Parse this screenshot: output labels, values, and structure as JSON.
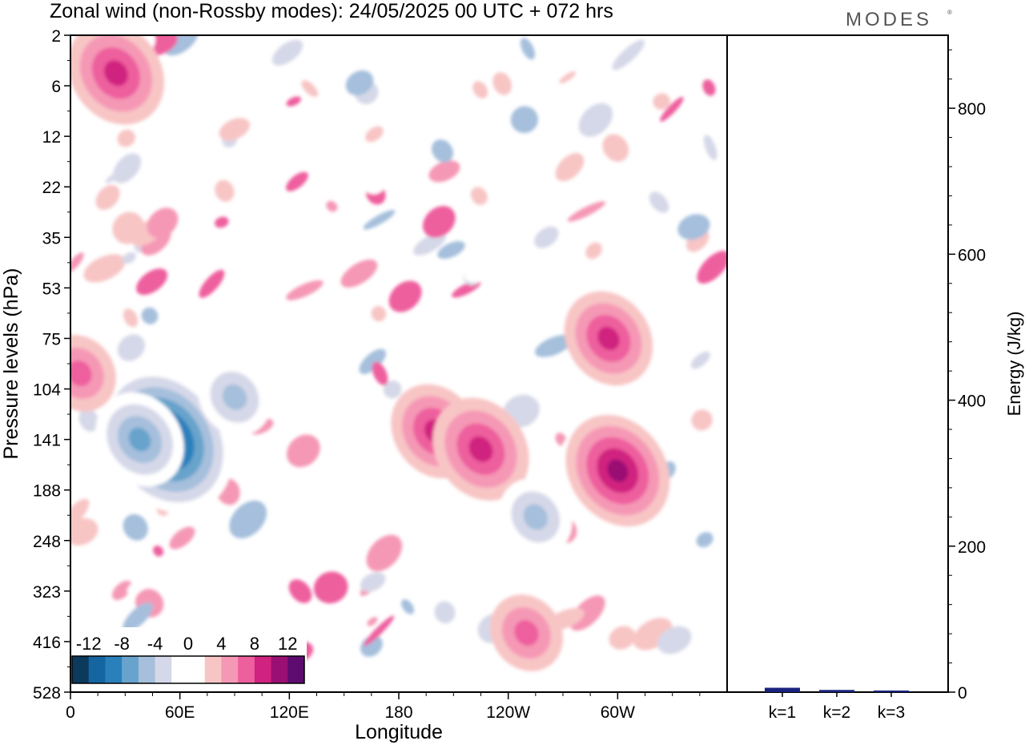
{
  "title": "Zonal wind (non-Rossby modes):  24/05/2025  00 UTC  + 072 hrs",
  "logo": "MODES",
  "ylabel": "Pressure levels (hPa)",
  "xlabel": "Longitude",
  "energy_label": "Energy (J/kg)",
  "chart_data": [
    {
      "type": "heatmap",
      "title": "Zonal wind (non-Rossby modes):  24/05/2025  00 UTC  + 072 hrs",
      "xlabel": "Longitude",
      "ylabel": "Pressure levels (hPa)",
      "x_ticks": [
        "0",
        "60E",
        "120E",
        "180",
        "120W",
        "60W"
      ],
      "y_ticks": [
        "2",
        "6",
        "12",
        "22",
        "35",
        "53",
        "75",
        "104",
        "141",
        "188",
        "248",
        "323",
        "416",
        "528"
      ],
      "colorbar": {
        "ticks": [
          "-12",
          "-8",
          "-4",
          "0",
          "4",
          "8",
          "12"
        ],
        "colors": [
          "#0b3a5c",
          "#1565a0",
          "#2a80bb",
          "#67a3cc",
          "#a5bfdc",
          "#d5d8e8",
          "#ffffff",
          "#ffffff",
          "#f8c5c5",
          "#f598b5",
          "#ee5f9e",
          "#d0227f",
          "#9a0f73",
          "#5e0b6f"
        ]
      },
      "features": [
        {
          "lon": 52,
          "level": 141,
          "value": -14
        },
        {
          "lon": 38,
          "level": 141,
          "value": -8
        },
        {
          "lon": 90,
          "level": 110,
          "value": -6
        },
        {
          "lon": 200,
          "level": 135,
          "value": 8
        },
        {
          "lon": 225,
          "level": 150,
          "value": 9
        },
        {
          "lon": 300,
          "level": 170,
          "value": 10
        },
        {
          "lon": 295,
          "level": 75,
          "value": 8
        },
        {
          "lon": 25,
          "level": 5,
          "value": 9
        },
        {
          "lon": 255,
          "level": 220,
          "value": -6
        },
        {
          "lon": 250,
          "level": 400,
          "value": 6
        },
        {
          "lon": 5,
          "level": 95,
          "value": 6
        }
      ]
    },
    {
      "type": "bar",
      "ylabel": "Energy (J/kg)",
      "categories": [
        "k=1",
        "k=2",
        "k=3"
      ],
      "values": [
        6,
        3,
        2
      ],
      "ylim": [
        0,
        900
      ],
      "y_ticks": [
        "0",
        "200",
        "400",
        "600",
        "800"
      ],
      "color": "#1a237e"
    }
  ]
}
